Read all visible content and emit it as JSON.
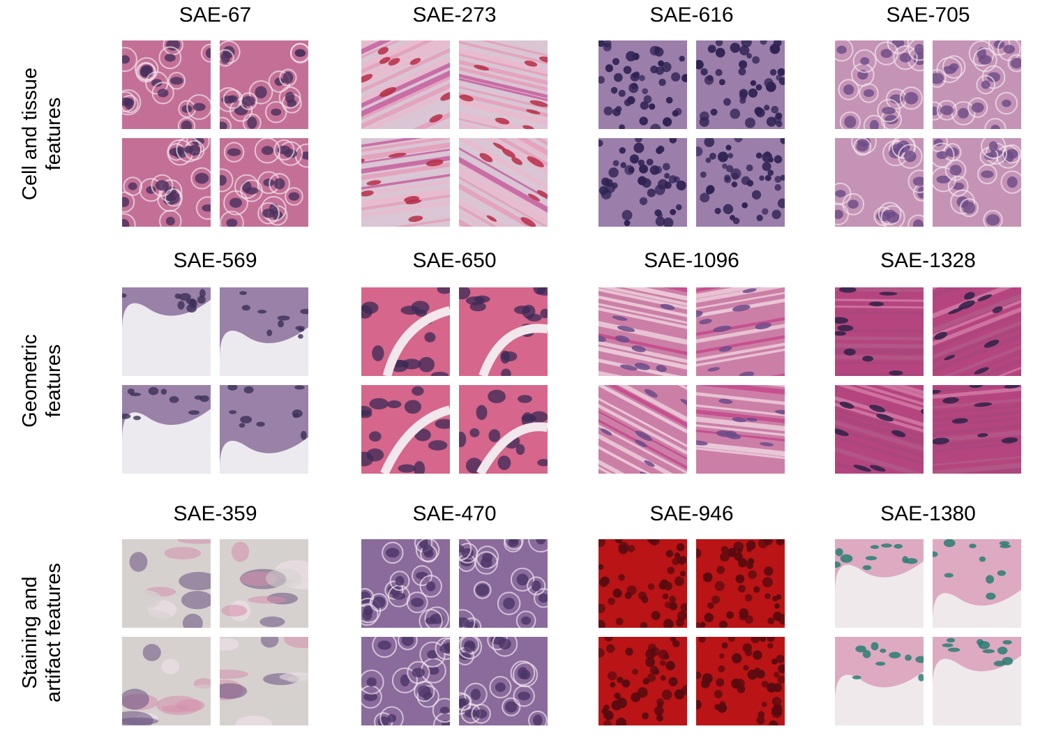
{
  "rows": [
    {
      "label_lines": [
        "Cell and tissue",
        "features"
      ],
      "panels": [
        {
          "title": "SAE-67",
          "palette": [
            "#c47096",
            "#8a6a9e",
            "#a97aa6",
            "#7a5d93"
          ],
          "bg": "#b87aa0",
          "nucleus": "#4a2f5e",
          "style": "cells"
        },
        {
          "title": "SAE-273",
          "palette": [
            "#e79ab6",
            "#d9c5d4",
            "#c6569a",
            "#eeb6cc"
          ],
          "bg": "#e7a6c0",
          "nucleus": "#b62d45",
          "style": "fibers"
        },
        {
          "title": "SAE-616",
          "palette": [
            "#7e6da2",
            "#9b7eaa",
            "#8870a0",
            "#6f6196"
          ],
          "bg": "#c7b4d3",
          "nucleus": "#2f2354",
          "style": "dots"
        },
        {
          "title": "SAE-705",
          "palette": [
            "#a88ab5",
            "#c593b6",
            "#dcc4d8",
            "#c9a3c4"
          ],
          "bg": "#cdb0cf",
          "nucleus": "#6a4b87",
          "style": "cells"
        }
      ]
    },
    {
      "label_lines": [
        "Geometric",
        "features"
      ],
      "panels": [
        {
          "title": "SAE-569",
          "palette": [
            "#e8e6ea",
            "#8b6f9b",
            "#c993b5",
            "#efedef"
          ],
          "bg": "#eceaee",
          "nucleus": "#3c2f58",
          "style": "edge"
        },
        {
          "title": "SAE-650",
          "palette": [
            "#d9a9bd",
            "#d6668b",
            "#b788ad",
            "#7a5d93"
          ],
          "bg": "#f1e7ec",
          "nucleus": "#3b2a55",
          "style": "gaps"
        },
        {
          "title": "SAE-1096",
          "palette": [
            "#eed3df",
            "#cc7fa6",
            "#c4458b",
            "#f0d9e4"
          ],
          "bg": "#ecc8d8",
          "nucleus": "#6b4a8a",
          "style": "fibers"
        },
        {
          "title": "SAE-1328",
          "palette": [
            "#b05a88",
            "#b5457f",
            "#d47ea9",
            "#a7467c"
          ],
          "bg": "#c76a98",
          "nucleus": "#2e2148",
          "style": "fibers"
        }
      ]
    },
    {
      "label_lines": [
        "Staining and",
        "artifact features"
      ],
      "panels": [
        {
          "title": "SAE-359",
          "palette": [
            "#d58eab",
            "#d6d1cf",
            "#f4e4ec",
            "#6a507f"
          ],
          "bg": "#efdbe4",
          "nucleus": "#3b2d52",
          "style": "blur"
        },
        {
          "title": "SAE-470",
          "palette": [
            "#a16b9f",
            "#8a6b9c",
            "#9b87b3",
            "#9e7aa8"
          ],
          "bg": "#b48bb1",
          "nucleus": "#4b3566",
          "style": "cells"
        },
        {
          "title": "SAE-946",
          "palette": [
            "#c11a1f",
            "#ba1416",
            "#c01b22",
            "#b8161b"
          ],
          "bg": "#c21a1e",
          "nucleus": "#5a0b10",
          "style": "dots"
        },
        {
          "title": "SAE-1380",
          "palette": [
            "#efe8ec",
            "#d99fba",
            "#b07aa7",
            "#ece5e9"
          ],
          "bg": "#efe9ec",
          "nucleus": "#1f7a6e",
          "style": "edge"
        }
      ]
    }
  ]
}
